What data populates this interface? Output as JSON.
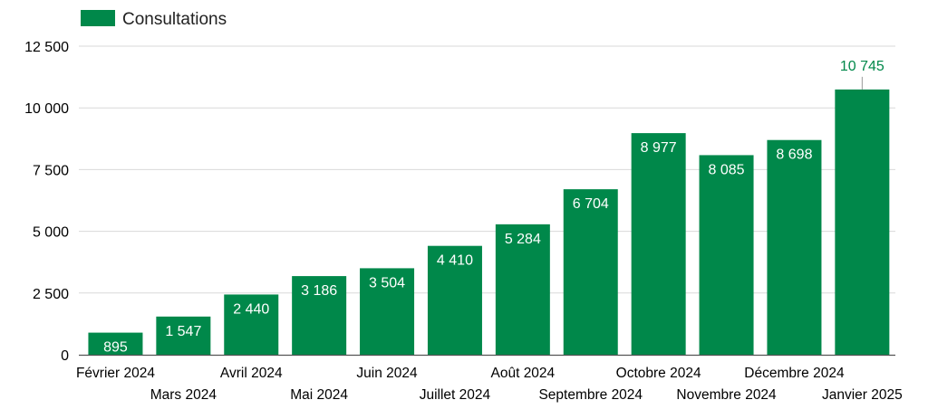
{
  "chart_data": {
    "type": "bar",
    "legend": {
      "position": "top-left",
      "entries": [
        "Consultations"
      ]
    },
    "categories": [
      "Février 2024",
      "Mars 2024",
      "Avril 2024",
      "Mai 2024",
      "Juin 2024",
      "Juillet 2024",
      "Août 2024",
      "Septembre 2024",
      "Octobre 2024",
      "Novembre 2024",
      "Décembre 2024",
      "Janvier 2025"
    ],
    "series": [
      {
        "name": "Consultations",
        "values": [
          895,
          1547,
          2440,
          3186,
          3504,
          4410,
          5284,
          6704,
          8977,
          8085,
          8698,
          10745
        ],
        "value_labels": [
          "895",
          "1 547",
          "2 440",
          "3 186",
          "3 504",
          "4 410",
          "5 284",
          "6 704",
          "8 977",
          "8 085",
          "8 698",
          "10 745"
        ],
        "color": "#00884a"
      }
    ],
    "ylim": [
      0,
      12500
    ],
    "yticks": [
      0,
      2500,
      5000,
      7500,
      10000,
      12500
    ],
    "ytick_labels": [
      "0",
      "2 500",
      "5 000",
      "7 500",
      "10 000",
      "12 500"
    ],
    "grid": true,
    "xlabel": "",
    "ylabel": "",
    "title": "",
    "colors": {
      "bar": "#00884a",
      "label_inside": "#ffffff",
      "label_outside": "#00884a",
      "grid": "#d9d9d9",
      "axis_text": "#000000"
    }
  }
}
